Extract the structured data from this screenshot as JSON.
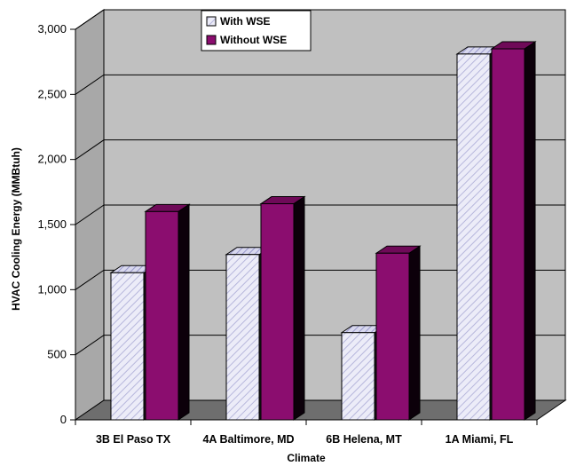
{
  "chart_data": {
    "type": "bar",
    "title": "",
    "xlabel": "Climate",
    "ylabel": "HVAC Cooling Energy (MMBtuh)",
    "categories": [
      "3B El Paso TX",
      "4A Baltimore, MD",
      "6B Helena, MT",
      "1A Miami, FL"
    ],
    "series": [
      {
        "name": "With WSE",
        "values": [
          1130,
          1270,
          670,
          2810
        ],
        "color": "#e6e6f5",
        "pattern": "diagonal-hatch"
      },
      {
        "name": "Without WSE",
        "values": [
          1600,
          1660,
          1280,
          2850
        ],
        "color": "#8b0d6f"
      }
    ],
    "ylim": [
      0,
      3000
    ],
    "yticks": [
      "0",
      "500",
      "1,000",
      "1,500",
      "2,000",
      "2,500",
      "3,000"
    ],
    "grid": true,
    "legend_position": "top-center",
    "three_d": true,
    "colors": {
      "back_wall": "#c0c0c0",
      "floor": "#6e6e6e"
    }
  }
}
